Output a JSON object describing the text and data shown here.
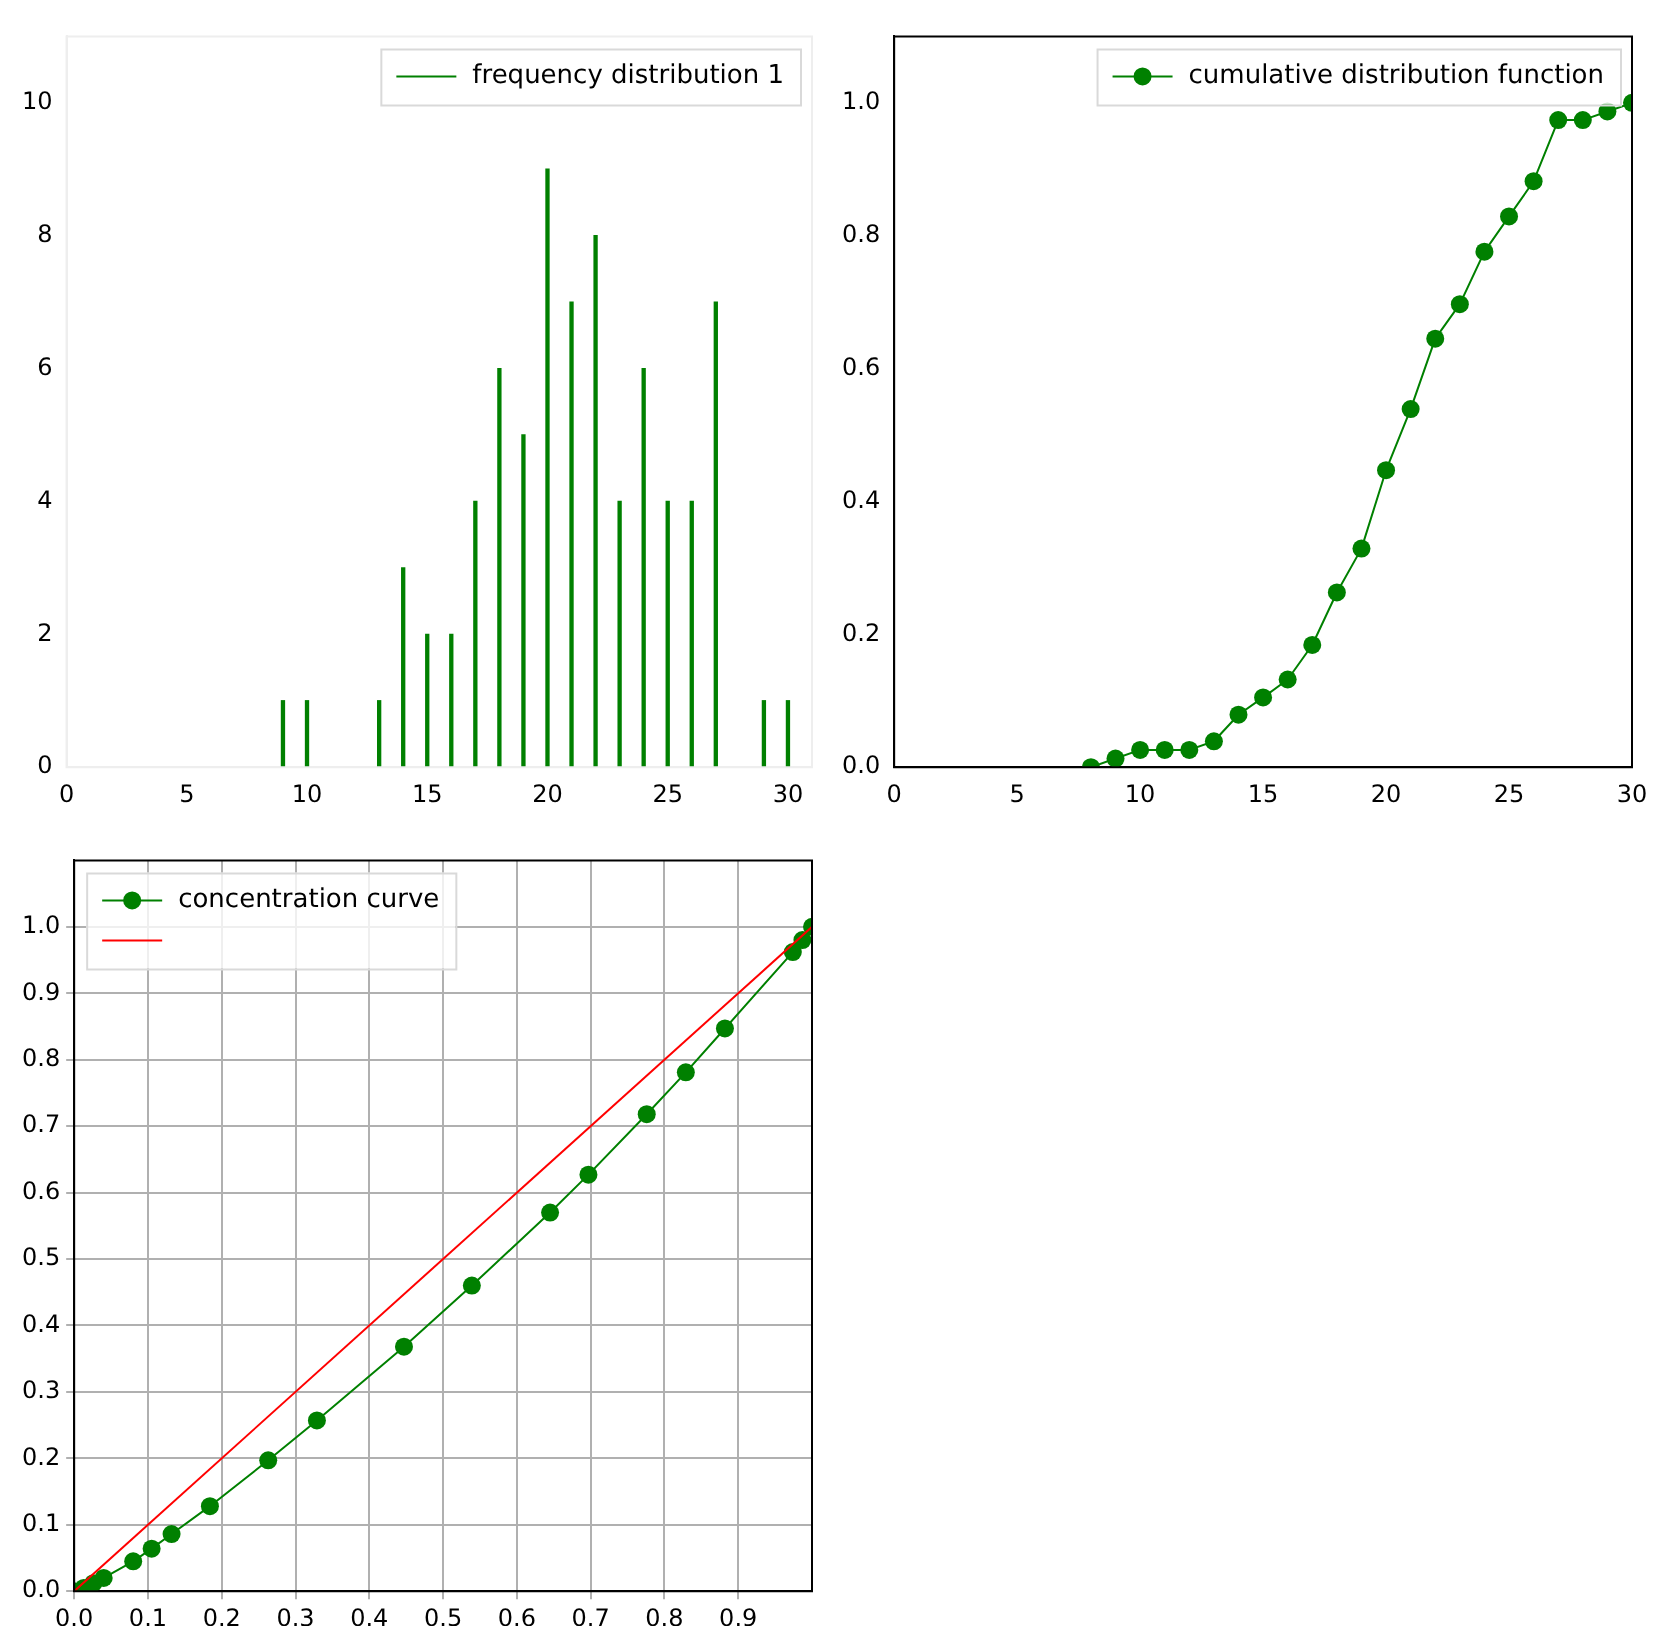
{
  "chart_data": [
    {
      "type": "bar",
      "x": [
        9,
        10,
        13,
        14,
        15,
        16,
        17,
        18,
        19,
        20,
        21,
        22,
        23,
        24,
        25,
        26,
        27,
        29,
        30
      ],
      "series": [
        {
          "name": "frequency distribution 1",
          "color": "#008000",
          "values": [
            1,
            1,
            1,
            3,
            2,
            2,
            4,
            6,
            5,
            9,
            7,
            8,
            4,
            6,
            4,
            4,
            7,
            1,
            1
          ]
        }
      ],
      "xlim": [
        0,
        31
      ],
      "xticks": [
        0,
        5,
        10,
        15,
        20,
        25,
        30
      ],
      "ylim": [
        0,
        11
      ],
      "yticks": [
        0,
        2,
        4,
        6,
        8,
        10
      ],
      "legend": "top right"
    },
    {
      "type": "line",
      "marker": "circle",
      "x": [
        8,
        9,
        10,
        11,
        12,
        13,
        14,
        15,
        16,
        17,
        18,
        19,
        20,
        21,
        22,
        23,
        24,
        25,
        26,
        27,
        28,
        29,
        30
      ],
      "series": [
        {
          "name": "cumulative distribution function",
          "color": "#008000",
          "values": [
            0,
            0.013,
            0.026,
            0.026,
            0.026,
            0.039,
            0.079,
            0.105,
            0.132,
            0.184,
            0.263,
            0.329,
            0.447,
            0.539,
            0.645,
            0.697,
            0.776,
            0.829,
            0.882,
            0.974,
            0.974,
            0.987,
            1.0
          ]
        }
      ],
      "xlim": [
        0,
        30
      ],
      "xticks": [
        0,
        5,
        10,
        15,
        20,
        25,
        30
      ],
      "ylim": [
        0,
        1.1
      ],
      "yticks": [
        {
          "value": 0,
          "label": "0.0"
        },
        {
          "value": 0.2,
          "label": "0.2"
        },
        {
          "value": 0.4,
          "label": "0.4"
        },
        {
          "value": 0.6,
          "label": "0.6"
        },
        {
          "value": 0.8,
          "label": "0.8"
        },
        {
          "value": 1,
          "label": "1.0"
        }
      ],
      "legend": "top right"
    },
    {
      "type": "line",
      "grid": true,
      "series": [
        {
          "name": "concentration curve",
          "color": "#008000",
          "marker": "circle",
          "x": [
            0,
            0.013,
            0.026,
            0.04,
            0.08,
            0.105,
            0.132,
            0.184,
            0.263,
            0.329,
            0.447,
            0.539,
            0.645,
            0.697,
            0.776,
            0.829,
            0.882,
            0.974,
            0.987,
            1.0
          ],
          "values": [
            0,
            0.005,
            0.012,
            0.02,
            0.045,
            0.064,
            0.086,
            0.128,
            0.197,
            0.257,
            0.368,
            0.46,
            0.57,
            0.627,
            0.718,
            0.781,
            0.847,
            0.962,
            0.98,
            1.0
          ]
        },
        {
          "color": "#ff0000",
          "marker": "none",
          "x": [
            0,
            1
          ],
          "values": [
            0,
            1
          ]
        }
      ],
      "xlim": [
        0,
        1
      ],
      "xticks": [
        {
          "value": 0,
          "label": "0.0"
        },
        {
          "value": 0.1,
          "label": "0.1"
        },
        {
          "value": 0.2,
          "label": "0.2"
        },
        {
          "value": 0.3,
          "label": "0.3"
        },
        {
          "value": 0.4,
          "label": "0.4"
        },
        {
          "value": 0.5,
          "label": "0.5"
        },
        {
          "value": 0.6,
          "label": "0.6"
        },
        {
          "value": 0.7,
          "label": "0.7"
        },
        {
          "value": 0.8,
          "label": "0.8"
        },
        {
          "value": 0.9,
          "label": "0.9"
        }
      ],
      "ylim": [
        0,
        1.1
      ],
      "yticks": [
        {
          "value": 0,
          "label": "0.0"
        },
        {
          "value": 0.1,
          "label": "0.1"
        },
        {
          "value": 0.2,
          "label": "0.2"
        },
        {
          "value": 0.3,
          "label": "0.3"
        },
        {
          "value": 0.4,
          "label": "0.4"
        },
        {
          "value": 0.5,
          "label": "0.5"
        },
        {
          "value": 0.6,
          "label": "0.6"
        },
        {
          "value": 0.7,
          "label": "0.7"
        },
        {
          "value": 0.8,
          "label": "0.8"
        },
        {
          "value": 0.9,
          "label": "0.9"
        },
        {
          "value": 1,
          "label": "1.0"
        }
      ],
      "legend": "top left"
    }
  ]
}
